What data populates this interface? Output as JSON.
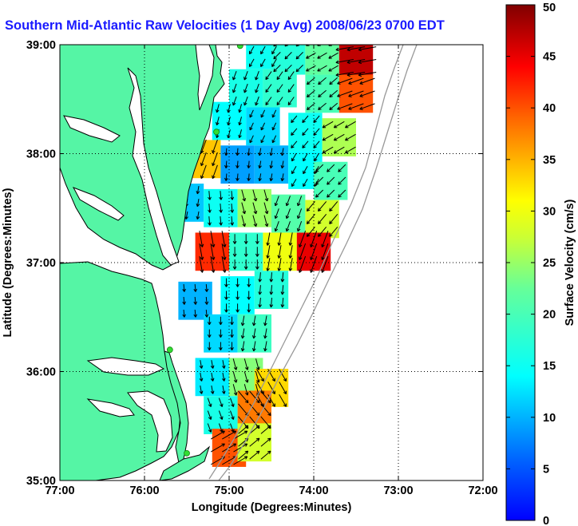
{
  "title": "Southern Mid-Atlantic Raw Velocities (1 Day Avg) 2008/06/23 0700 EDT",
  "map": {
    "xlabel": "Longitude (Degrees:Minutes)",
    "ylabel": "Latitude (Degrees:Minutes)",
    "x_ticks": [
      "77:00",
      "76:00",
      "75:00",
      "74:00",
      "73:00",
      "72:00"
    ],
    "y_ticks": [
      "39:00",
      "38:00",
      "37:00",
      "36:00",
      "35:00"
    ],
    "xlim_deg": [
      -77,
      -72
    ],
    "ylim_deg": [
      35,
      39
    ],
    "grid": "dotted",
    "land_color": "#55f5a5",
    "land_outline_color": "#000000",
    "bathymetry_color": "#999999",
    "station_color": "#33dd33",
    "stations": [
      {
        "lon": -74.87,
        "lat": 38.99
      },
      {
        "lon": -75.15,
        "lat": 38.2
      },
      {
        "lon": -75.7,
        "lat": 36.2
      },
      {
        "lon": -75.5,
        "lat": 35.25
      }
    ],
    "velocity_cells": [
      {
        "lon": -74.6,
        "lat": 38.95,
        "speed": 15,
        "dir": 210
      },
      {
        "lon": -74.3,
        "lat": 38.9,
        "speed": 17,
        "dir": 225
      },
      {
        "lon": -73.9,
        "lat": 38.9,
        "speed": 22,
        "dir": 240
      },
      {
        "lon": -73.5,
        "lat": 38.85,
        "speed": 47,
        "dir": 260
      },
      {
        "lon": -74.8,
        "lat": 38.6,
        "speed": 16,
        "dir": 200
      },
      {
        "lon": -74.4,
        "lat": 38.6,
        "speed": 18,
        "dir": 215
      },
      {
        "lon": -73.9,
        "lat": 38.55,
        "speed": 20,
        "dir": 230
      },
      {
        "lon": -73.5,
        "lat": 38.55,
        "speed": 40,
        "dir": 250
      },
      {
        "lon": -75.0,
        "lat": 38.3,
        "speed": 14,
        "dir": 195
      },
      {
        "lon": -74.6,
        "lat": 38.25,
        "speed": 12,
        "dir": 205
      },
      {
        "lon": -74.1,
        "lat": 38.2,
        "speed": 15,
        "dir": 220
      },
      {
        "lon": -73.7,
        "lat": 38.15,
        "speed": 26,
        "dir": 240
      },
      {
        "lon": -75.3,
        "lat": 37.95,
        "speed": 34,
        "dir": 200
      },
      {
        "lon": -74.9,
        "lat": 37.9,
        "speed": 9,
        "dir": 185
      },
      {
        "lon": -74.5,
        "lat": 37.9,
        "speed": 10,
        "dir": 190
      },
      {
        "lon": -74.1,
        "lat": 37.85,
        "speed": 14,
        "dir": 210
      },
      {
        "lon": -73.8,
        "lat": 37.75,
        "speed": 20,
        "dir": 225
      },
      {
        "lon": -75.5,
        "lat": 37.55,
        "speed": 11,
        "dir": 190
      },
      {
        "lon": -75.1,
        "lat": 37.5,
        "speed": 15,
        "dir": 175
      },
      {
        "lon": -74.7,
        "lat": 37.5,
        "speed": 25,
        "dir": 165
      },
      {
        "lon": -74.3,
        "lat": 37.45,
        "speed": 21,
        "dir": 200
      },
      {
        "lon": -73.9,
        "lat": 37.4,
        "speed": 28,
        "dir": 220
      },
      {
        "lon": -75.2,
        "lat": 37.1,
        "speed": 42,
        "dir": 170
      },
      {
        "lon": -74.8,
        "lat": 37.1,
        "speed": 18,
        "dir": 180
      },
      {
        "lon": -74.4,
        "lat": 37.1,
        "speed": 30,
        "dir": 190
      },
      {
        "lon": -74.0,
        "lat": 37.1,
        "speed": 45,
        "dir": 200
      },
      {
        "lon": -74.9,
        "lat": 36.7,
        "speed": 14,
        "dir": 180
      },
      {
        "lon": -74.5,
        "lat": 36.75,
        "speed": 17,
        "dir": 185
      },
      {
        "lon": -75.4,
        "lat": 36.65,
        "speed": 10,
        "dir": 175
      },
      {
        "lon": -75.1,
        "lat": 36.35,
        "speed": 12,
        "dir": 180
      },
      {
        "lon": -74.7,
        "lat": 36.35,
        "speed": 19,
        "dir": 190
      },
      {
        "lon": -75.2,
        "lat": 35.95,
        "speed": 13,
        "dir": 170
      },
      {
        "lon": -74.8,
        "lat": 35.95,
        "speed": 24,
        "dir": 165
      },
      {
        "lon": -74.5,
        "lat": 35.85,
        "speed": 33,
        "dir": 150
      },
      {
        "lon": -75.1,
        "lat": 35.6,
        "speed": 16,
        "dir": 160
      },
      {
        "lon": -74.7,
        "lat": 35.65,
        "speed": 38,
        "dir": 140
      },
      {
        "lon": -75.0,
        "lat": 35.3,
        "speed": 40,
        "dir": 60
      },
      {
        "lon": -74.7,
        "lat": 35.35,
        "speed": 28,
        "dir": 50
      }
    ]
  },
  "colorbar": {
    "label": "Surface Velocity (cm/s)",
    "min": 0,
    "max": 50,
    "ticks": [
      "0",
      "5",
      "10",
      "15",
      "20",
      "25",
      "30",
      "35",
      "40",
      "45",
      "50"
    ]
  }
}
